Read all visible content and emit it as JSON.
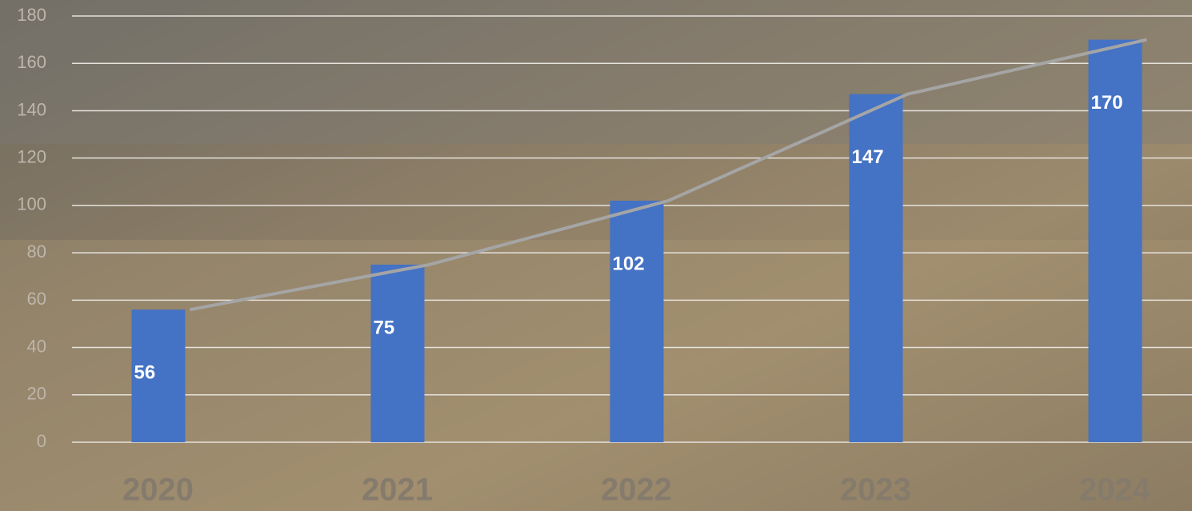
{
  "chart_data": {
    "type": "bar",
    "categories": [
      "2020",
      "2021",
      "2022",
      "2023",
      "2024"
    ],
    "series": [
      {
        "type": "bar",
        "color": "#4472c4",
        "values": [
          56,
          75,
          102,
          147,
          170
        ]
      },
      {
        "type": "line",
        "color": "#a5a5a5",
        "values": [
          56,
          75,
          102,
          147,
          170
        ]
      }
    ],
    "ylim": [
      0,
      180
    ],
    "yticks": [
      0,
      20,
      40,
      60,
      80,
      100,
      120,
      140,
      160,
      180
    ],
    "grid": true
  }
}
